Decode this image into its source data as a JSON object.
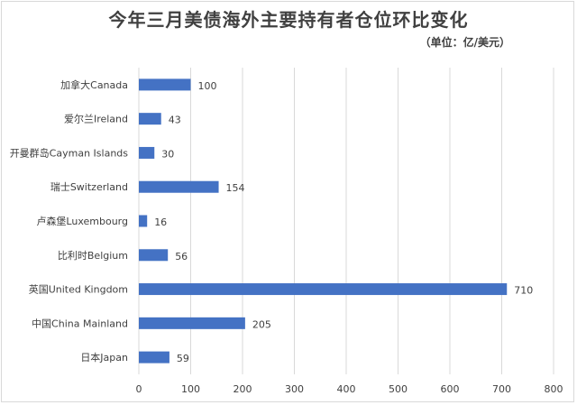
{
  "chart_data": {
    "type": "bar",
    "orientation": "horizontal",
    "title": "今年三月美债海外主要持有者仓位环比变化",
    "subtitle": "（单位：亿/美元）",
    "categories": [
      "加拿大Canada",
      "爱尔兰Ireland",
      "开曼群岛Cayman Islands",
      "瑞士Switzerland",
      "卢森堡Luxembourg",
      "比利时Belgium",
      "英国United Kingdom",
      "中国China Mainland",
      "日本Japan"
    ],
    "values": [
      100,
      43,
      30,
      154,
      16,
      56,
      710,
      205,
      59
    ],
    "xlim": [
      0,
      800
    ],
    "xticks": [
      0,
      100,
      200,
      300,
      400,
      500,
      600,
      700,
      800
    ],
    "grid": "vertical",
    "legend": "none",
    "bar_color": "#4472c4",
    "grid_color": "#d9d9d9"
  }
}
